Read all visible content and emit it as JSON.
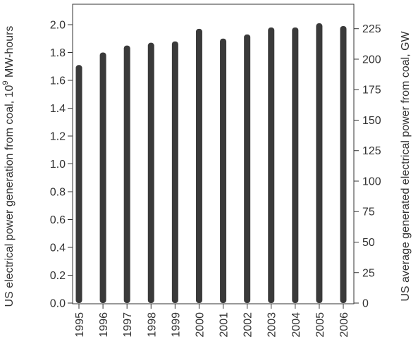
{
  "chart_data": {
    "type": "bar",
    "title": "",
    "categories": [
      "1995",
      "1996",
      "1997",
      "1998",
      "1999",
      "2000",
      "2001",
      "2002",
      "2003",
      "2004",
      "2005",
      "2006"
    ],
    "series": [
      {
        "values": [
          1.71,
          1.8,
          1.85,
          1.87,
          1.88,
          1.97,
          1.9,
          1.93,
          1.98,
          1.98,
          2.01,
          1.99
        ]
      }
    ],
    "xlabel": "",
    "ylabel": "US electrical power generation from coal, 10^9 MW-hours",
    "ylabel_parts": {
      "prefix": "US electrical power generation from coal, 10",
      "superscript": "9",
      "suffix": " MW-hours"
    },
    "ylim": [
      0,
      2.0
    ],
    "yticks": [
      "0.0",
      "0.2",
      "0.4",
      "0.6",
      "0.8",
      "1.0",
      "1.2",
      "1.4",
      "1.6",
      "1.8",
      "2.0"
    ],
    "ylabel_right": "US average generated electrical power from coal, GW",
    "ylim_right": [
      0,
      228.3
    ],
    "yticks_right": [
      "0",
      "25",
      "50",
      "75",
      "100",
      "125",
      "150",
      "175",
      "200",
      "225"
    ],
    "grid": false,
    "legend": "none",
    "bar_color": "#3a3a3a",
    "axis_color": "#333333"
  }
}
